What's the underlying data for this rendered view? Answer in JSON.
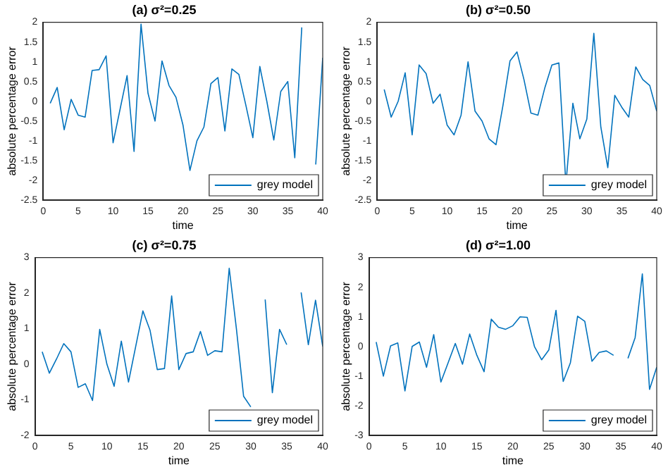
{
  "chart_data": [
    {
      "type": "line",
      "title": "(a) σ²=0.25",
      "xlabel": "time",
      "ylabel": "absolute percentage error",
      "legend": "bottom right",
      "grid": false,
      "x": [
        1,
        2,
        3,
        4,
        5,
        6,
        7,
        8,
        9,
        10,
        11,
        12,
        13,
        14,
        15,
        16,
        17,
        18,
        19,
        20,
        21,
        22,
        23,
        24,
        25,
        26,
        27,
        28,
        29,
        30,
        31,
        32,
        33,
        34,
        35,
        36,
        37,
        38,
        39,
        40
      ],
      "series": [
        {
          "name": "grey model",
          "color": "#0072bd",
          "values": [
            -0.05,
            0.35,
            -0.72,
            0.05,
            -0.35,
            -0.4,
            0.78,
            0.8,
            1.15,
            -1.05,
            -0.2,
            0.65,
            -1.27,
            1.95,
            0.2,
            -0.5,
            1.02,
            0.4,
            0.1,
            -0.6,
            -1.75,
            -1.0,
            -0.65,
            0.45,
            0.6,
            -0.75,
            0.82,
            0.68,
            -0.1,
            -0.92,
            0.88,
            0.0,
            -0.98,
            0.25,
            0.5,
            -1.43,
            1.87,
            null,
            -1.6,
            1.1
          ]
        }
      ],
      "xlim": [
        0,
        40
      ],
      "xticks": [
        0,
        5,
        10,
        15,
        20,
        25,
        30,
        35,
        40
      ],
      "ylim": [
        -2.5,
        2
      ],
      "yticks": [
        -2.5,
        -2,
        -1.5,
        -1,
        -0.5,
        0,
        0.5,
        1,
        1.5,
        2
      ]
    },
    {
      "type": "line",
      "title": "(b) σ²=0.50",
      "xlabel": "time",
      "ylabel": "absolute percentage error",
      "legend": "bottom right",
      "grid": false,
      "x": [
        1,
        2,
        3,
        4,
        5,
        6,
        7,
        8,
        9,
        10,
        11,
        12,
        13,
        14,
        15,
        16,
        17,
        18,
        19,
        20,
        21,
        22,
        23,
        24,
        25,
        26,
        27,
        28,
        29,
        30,
        31,
        32,
        33,
        34,
        35,
        36,
        37,
        38,
        39,
        40
      ],
      "series": [
        {
          "name": "grey model",
          "color": "#0072bd",
          "values": [
            0.3,
            -0.4,
            0.0,
            0.72,
            -0.85,
            0.92,
            0.7,
            -0.05,
            0.18,
            -0.6,
            -0.85,
            -0.35,
            1.0,
            -0.25,
            -0.5,
            -0.95,
            -1.1,
            -0.1,
            1.02,
            1.25,
            0.55,
            -0.3,
            -0.35,
            0.35,
            0.92,
            0.97,
            -2.1,
            -0.05,
            -0.95,
            -0.45,
            1.72,
            -0.65,
            -1.68,
            0.15,
            -0.15,
            -0.4,
            0.87,
            0.55,
            0.4,
            -0.25
          ]
        }
      ],
      "xlim": [
        0,
        40
      ],
      "xticks": [
        0,
        5,
        10,
        15,
        20,
        25,
        30,
        35,
        40
      ],
      "ylim": [
        -2.5,
        2
      ],
      "yticks": [
        -2.5,
        -2,
        -1.5,
        -1,
        -0.5,
        0,
        0.5,
        1,
        1.5,
        2
      ]
    },
    {
      "type": "line",
      "title": "(c) σ²=0.75",
      "xlabel": "time",
      "ylabel": "absolute percentage error",
      "legend": "bottom right",
      "grid": false,
      "x": [
        1,
        2,
        3,
        4,
        5,
        6,
        7,
        8,
        9,
        10,
        11,
        12,
        13,
        14,
        15,
        16,
        17,
        18,
        19,
        20,
        21,
        22,
        23,
        24,
        25,
        26,
        27,
        28,
        29,
        30,
        31,
        32,
        33,
        34,
        35,
        36,
        37,
        38,
        39,
        40
      ],
      "series": [
        {
          "name": "grey model",
          "color": "#0072bd",
          "values": [
            0.35,
            -0.25,
            0.15,
            0.58,
            0.35,
            -0.65,
            -0.55,
            -1.02,
            0.98,
            0.0,
            -0.62,
            0.65,
            -0.5,
            0.5,
            1.5,
            0.95,
            -0.15,
            -0.12,
            1.92,
            -0.15,
            0.3,
            0.35,
            0.92,
            0.25,
            0.38,
            0.35,
            2.7,
            1.0,
            -0.9,
            -1.2,
            null,
            1.82,
            -0.8,
            0.98,
            0.55,
            null,
            2.02,
            0.55,
            1.8,
            0.5
          ]
        }
      ],
      "xlim": [
        0,
        40
      ],
      "xticks": [
        0,
        5,
        10,
        15,
        20,
        25,
        30,
        35,
        40
      ],
      "ylim": [
        -2,
        3
      ],
      "yticks": [
        -2,
        -1,
        0,
        1,
        2,
        3
      ]
    },
    {
      "type": "line",
      "title": "(d) σ²=1.00",
      "xlabel": "time",
      "ylabel": "absolute percentage error",
      "legend": "bottom right",
      "grid": false,
      "x": [
        1,
        2,
        3,
        4,
        5,
        6,
        7,
        8,
        9,
        10,
        11,
        12,
        13,
        14,
        15,
        16,
        17,
        18,
        19,
        20,
        21,
        22,
        23,
        24,
        25,
        26,
        27,
        28,
        29,
        30,
        31,
        32,
        33,
        34,
        35,
        36,
        37,
        38,
        39,
        40
      ],
      "series": [
        {
          "name": "grey model",
          "color": "#0072bd",
          "values": [
            0.15,
            -1.0,
            0.02,
            0.12,
            -1.5,
            0.0,
            0.15,
            -0.7,
            0.4,
            -1.2,
            -0.55,
            0.1,
            -0.6,
            0.42,
            -0.3,
            -0.85,
            0.92,
            0.65,
            0.58,
            0.7,
            1.0,
            0.98,
            0.0,
            -0.45,
            -0.12,
            1.22,
            -1.18,
            -0.55,
            1.02,
            0.85,
            -0.5,
            -0.2,
            -0.15,
            -0.3,
            null,
            -0.4,
            0.3,
            2.45,
            -1.45,
            -0.7
          ]
        }
      ],
      "xlim": [
        0,
        40
      ],
      "xticks": [
        0,
        5,
        10,
        15,
        20,
        25,
        30,
        35,
        40
      ],
      "ylim": [
        -3,
        3
      ],
      "yticks": [
        -3,
        -2,
        -1,
        0,
        1,
        2,
        3
      ]
    }
  ]
}
